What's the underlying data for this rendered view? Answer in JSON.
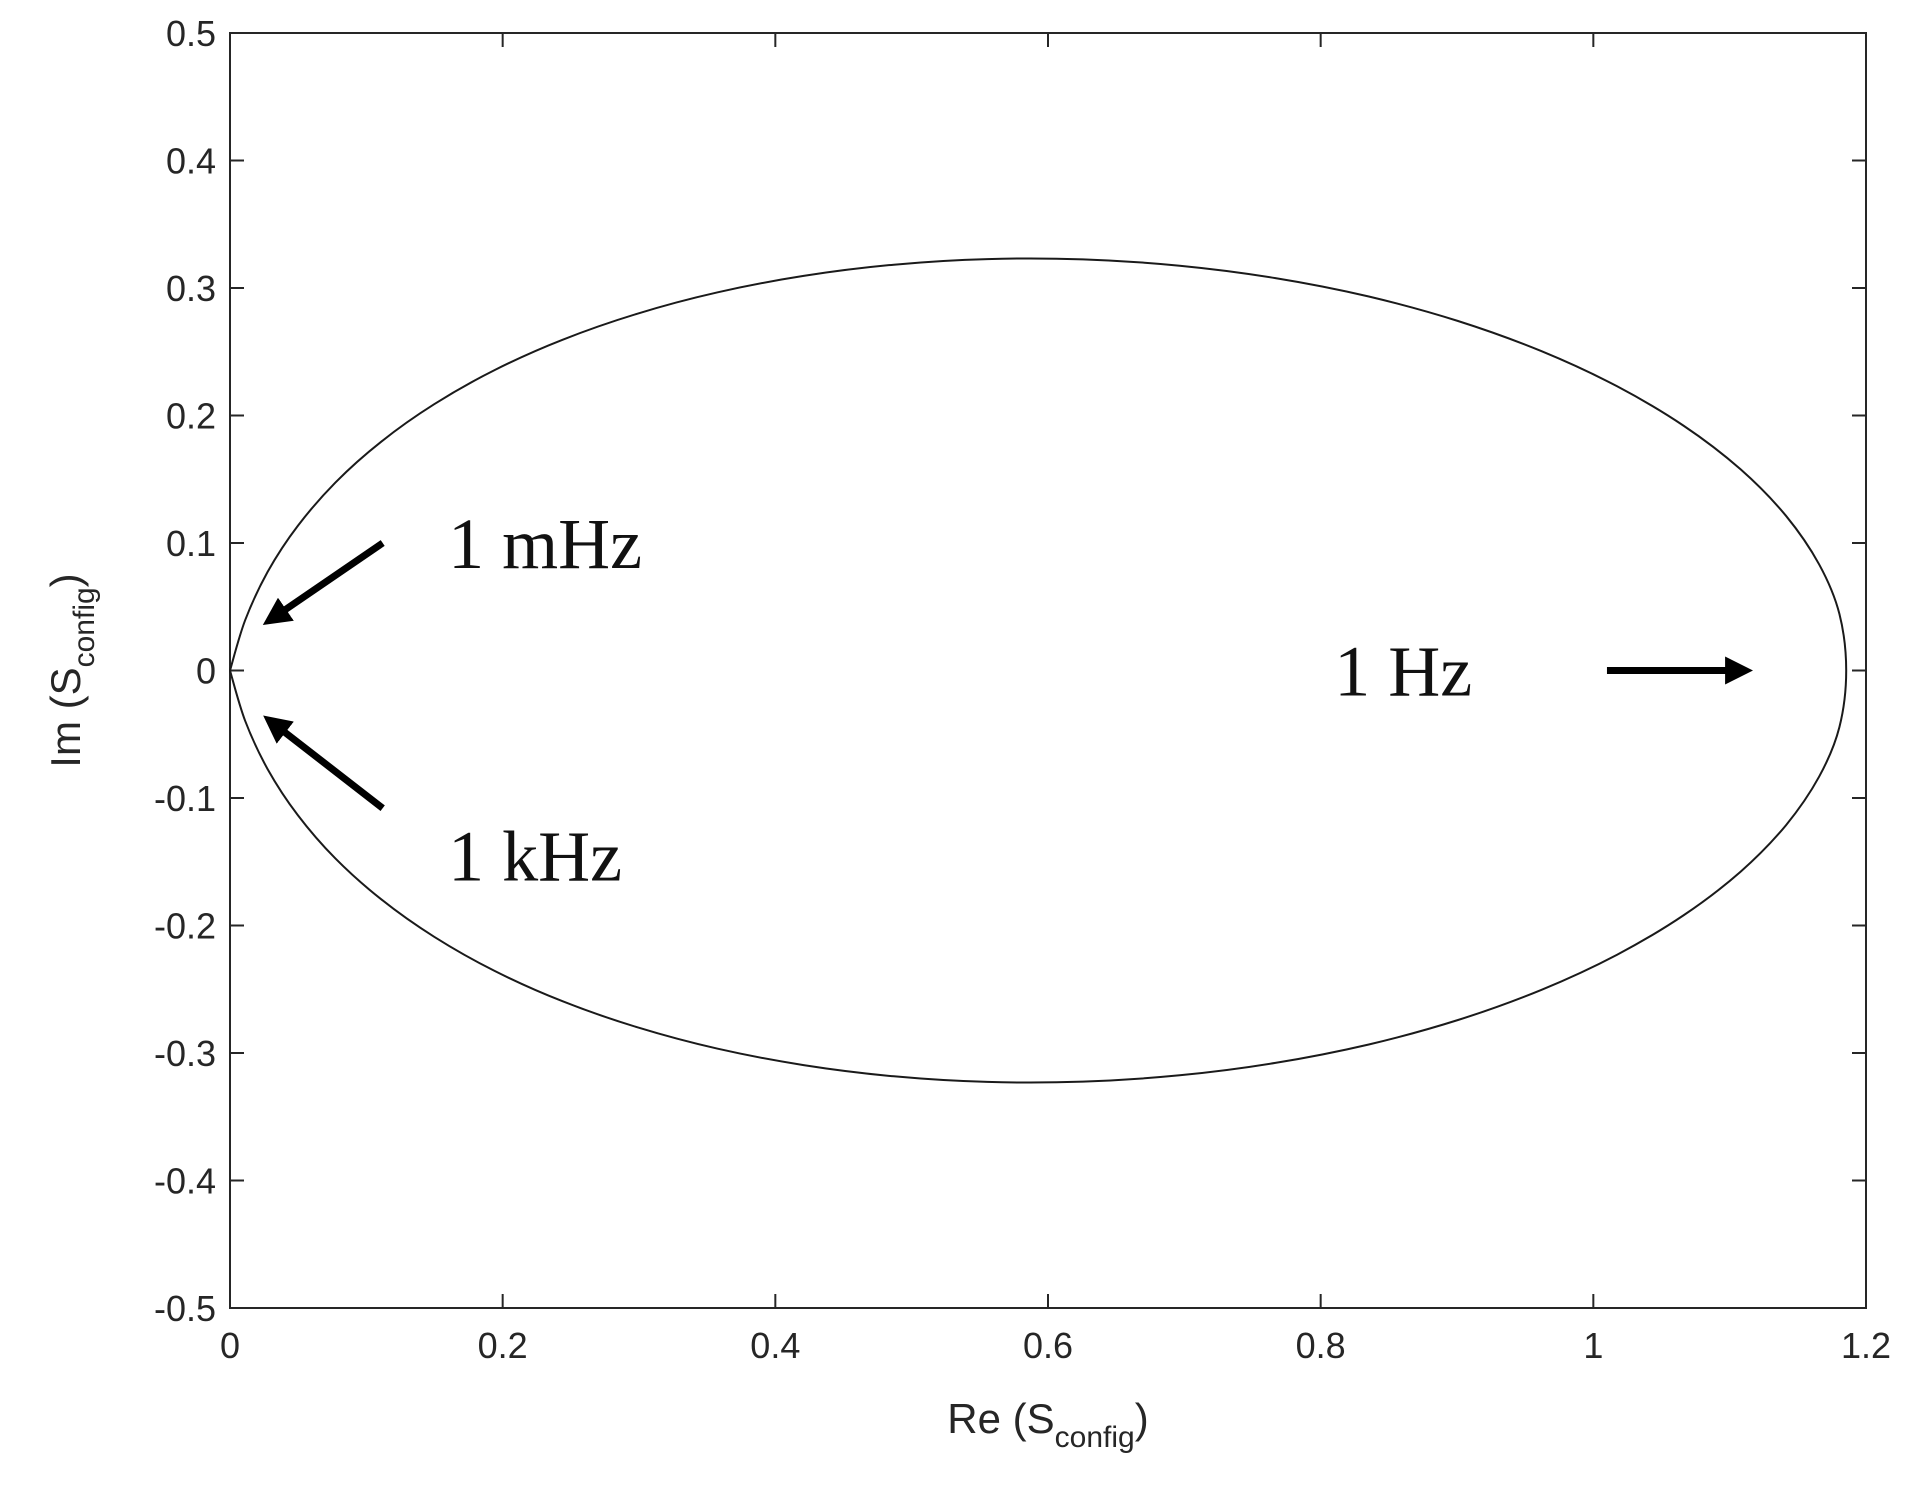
{
  "chart_data": {
    "type": "line",
    "xlabel": {
      "prefix": "Re (S",
      "sub": "config",
      "suffix": ")"
    },
    "ylabel": {
      "prefix": "Im (S",
      "sub": "config",
      "suffix": ")"
    },
    "xlim": [
      0,
      1.2
    ],
    "ylim": [
      -0.5,
      0.5
    ],
    "xticks": [
      0,
      0.2,
      0.4,
      0.6,
      0.8,
      1.0,
      1.2
    ],
    "xtick_labels": [
      "0",
      "0.2",
      "0.4",
      "0.6",
      "0.8",
      "1",
      "1.2"
    ],
    "yticks": [
      -0.5,
      -0.4,
      -0.3,
      -0.2,
      -0.1,
      0,
      0.1,
      0.2,
      0.3,
      0.4,
      0.5
    ],
    "ytick_labels": [
      "-0.5",
      "-0.4",
      "-0.3",
      "-0.2",
      "-0.1",
      "0",
      "0.1",
      "0.2",
      "0.3",
      "0.4",
      "0.5"
    ],
    "grid": false,
    "series": [
      {
        "color": "#1a1a1a",
        "points": [
          [
            0.0,
            0.0
          ],
          [
            0.0111,
            0.0394
          ],
          [
            0.0276,
            0.0773
          ],
          [
            0.0497,
            0.1134
          ],
          [
            0.0774,
            0.1475
          ],
          [
            0.1108,
            0.1794
          ],
          [
            0.1498,
            0.2089
          ],
          [
            0.1942,
            0.2357
          ],
          [
            0.2439,
            0.2594
          ],
          [
            0.2986,
            0.2798
          ],
          [
            0.3577,
            0.2966
          ],
          [
            0.4207,
            0.3095
          ],
          [
            0.4869,
            0.3183
          ],
          [
            0.5555,
            0.3227
          ],
          [
            0.6257,
            0.3224
          ],
          [
            0.6966,
            0.3175
          ],
          [
            0.7668,
            0.3078
          ],
          [
            0.8353,
            0.2933
          ],
          [
            0.9007,
            0.2741
          ],
          [
            0.9618,
            0.2505
          ],
          [
            1.0174,
            0.2229
          ],
          [
            1.0665,
            0.1918
          ],
          [
            1.1081,
            0.1577
          ],
          [
            1.1413,
            0.1213
          ],
          [
            1.1656,
            0.0833
          ],
          [
            1.1805,
            0.0444
          ],
          [
            1.1855,
            0.0
          ],
          [
            1.1805,
            -0.0444
          ],
          [
            1.1656,
            -0.0833
          ],
          [
            1.1413,
            -0.1213
          ],
          [
            1.1081,
            -0.1577
          ],
          [
            1.0665,
            -0.1918
          ],
          [
            1.0174,
            -0.2229
          ],
          [
            0.9618,
            -0.2505
          ],
          [
            0.9007,
            -0.2741
          ],
          [
            0.8353,
            -0.2933
          ],
          [
            0.7668,
            -0.3078
          ],
          [
            0.6966,
            -0.3175
          ],
          [
            0.6257,
            -0.3224
          ],
          [
            0.5555,
            -0.3227
          ],
          [
            0.4869,
            -0.3183
          ],
          [
            0.4207,
            -0.3095
          ],
          [
            0.3577,
            -0.2966
          ],
          [
            0.2986,
            -0.2798
          ],
          [
            0.2439,
            -0.2594
          ],
          [
            0.1942,
            -0.2357
          ],
          [
            0.1498,
            -0.2089
          ],
          [
            0.1108,
            -0.1794
          ],
          [
            0.0774,
            -0.1475
          ],
          [
            0.0497,
            -0.1134
          ],
          [
            0.0276,
            -0.0773
          ],
          [
            0.0111,
            -0.0394
          ],
          [
            0.0,
            0.0
          ]
        ]
      }
    ],
    "annotations": [
      {
        "text": "1 mHz",
        "text_at": [
          0.16,
          0.1
        ],
        "arrow_from": [
          0.112,
          0.1
        ],
        "arrow_to": [
          0.03,
          0.04
        ]
      },
      {
        "text": "1 kHz",
        "text_at": [
          0.16,
          -0.145
        ],
        "arrow_from": [
          0.112,
          -0.108
        ],
        "arrow_to": [
          0.03,
          -0.04
        ]
      },
      {
        "text": "1 Hz",
        "text_at": [
          0.81,
          0.0
        ],
        "arrow_from": [
          1.01,
          0.0
        ],
        "arrow_to": [
          1.11,
          0.0
        ]
      }
    ]
  }
}
